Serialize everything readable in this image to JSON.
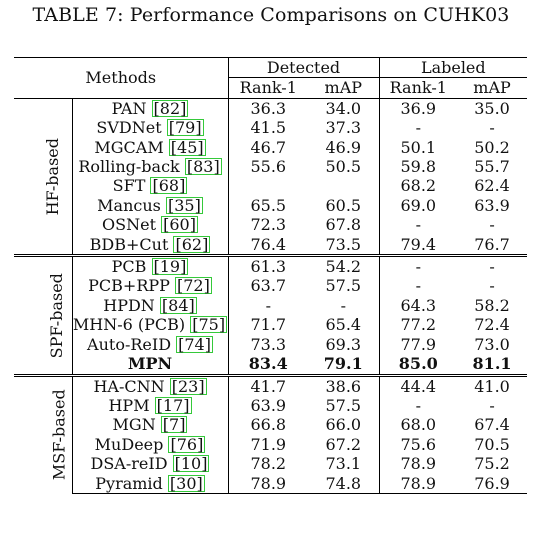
{
  "caption": "TABLE 7: Performance Comparisons on CUHK03",
  "header": {
    "methods": "Methods",
    "detected": "Detected",
    "labeled": "Labeled",
    "rank1": "Rank-1",
    "map": "mAP"
  },
  "groups": [
    {
      "name": "HF-based",
      "rows": [
        {
          "method": "PAN",
          "ref": "82",
          "d_r1": "36.3",
          "d_map": "34.0",
          "l_r1": "36.9",
          "l_map": "35.0"
        },
        {
          "method": "SVDNet",
          "ref": "79",
          "d_r1": "41.5",
          "d_map": "37.3",
          "l_r1": "-",
          "l_map": "-"
        },
        {
          "method": "MGCAM",
          "ref": "45",
          "d_r1": "46.7",
          "d_map": "46.9",
          "l_r1": "50.1",
          "l_map": "50.2"
        },
        {
          "method": "Rolling-back",
          "ref": "83",
          "d_r1": "55.6",
          "d_map": "50.5",
          "l_r1": "59.8",
          "l_map": "55.7"
        },
        {
          "method": "SFT",
          "ref": "68",
          "d_r1": "",
          "d_map": "",
          "l_r1": "68.2",
          "l_map": "62.4"
        },
        {
          "method": "Mancus",
          "ref": "35",
          "d_r1": "65.5",
          "d_map": "60.5",
          "l_r1": "69.0",
          "l_map": "63.9"
        },
        {
          "method": "OSNet",
          "ref": "60",
          "d_r1": "72.3",
          "d_map": "67.8",
          "l_r1": "-",
          "l_map": "-"
        },
        {
          "method": "BDB+Cut",
          "ref": "62",
          "d_r1": "76.4",
          "d_map": "73.5",
          "l_r1": "79.4",
          "l_map": "76.7"
        }
      ]
    },
    {
      "name": "SPF-based",
      "rows": [
        {
          "method": "PCB",
          "ref": "19",
          "d_r1": "61.3",
          "d_map": "54.2",
          "l_r1": "-",
          "l_map": "-"
        },
        {
          "method": "PCB+RPP",
          "ref": "72",
          "d_r1": "63.7",
          "d_map": "57.5",
          "l_r1": "-",
          "l_map": "-"
        },
        {
          "method": "HPDN",
          "ref": "84",
          "d_r1": "-",
          "d_map": "-",
          "l_r1": "64.3",
          "l_map": "58.2"
        },
        {
          "method": "MHN-6 (PCB)",
          "ref": "75",
          "d_r1": "71.7",
          "d_map": "65.4",
          "l_r1": "77.2",
          "l_map": "72.4"
        },
        {
          "method": "Auto-ReID",
          "ref": "74",
          "d_r1": "73.3",
          "d_map": "69.3",
          "l_r1": "77.9",
          "l_map": "73.0"
        },
        {
          "method": "MPN",
          "ref": "",
          "d_r1": "83.4",
          "d_map": "79.1",
          "l_r1": "85.0",
          "l_map": "81.1",
          "bold": true
        }
      ]
    },
    {
      "name": "MSF-based",
      "rows": [
        {
          "method": "HA-CNN",
          "ref": "23",
          "d_r1": "41.7",
          "d_map": "38.6",
          "l_r1": "44.4",
          "l_map": "41.0"
        },
        {
          "method": "HPM",
          "ref": "17",
          "d_r1": "63.9",
          "d_map": "57.5",
          "l_r1": "-",
          "l_map": "-"
        },
        {
          "method": "MGN",
          "ref": "7",
          "d_r1": "66.8",
          "d_map": "66.0",
          "l_r1": "68.0",
          "l_map": "67.4"
        },
        {
          "method": "MuDeep",
          "ref": "76",
          "d_r1": "71.9",
          "d_map": "67.2",
          "l_r1": "75.6",
          "l_map": "70.5"
        },
        {
          "method": "DSA-reID",
          "ref": "10",
          "d_r1": "78.2",
          "d_map": "73.1",
          "l_r1": "78.9",
          "l_map": "75.2"
        },
        {
          "method": "Pyramid",
          "ref": "30",
          "d_r1": "78.9",
          "d_map": "74.8",
          "l_r1": "78.9",
          "l_map": "76.9"
        }
      ]
    }
  ],
  "colors": {
    "ref_box": "#35c93a"
  }
}
